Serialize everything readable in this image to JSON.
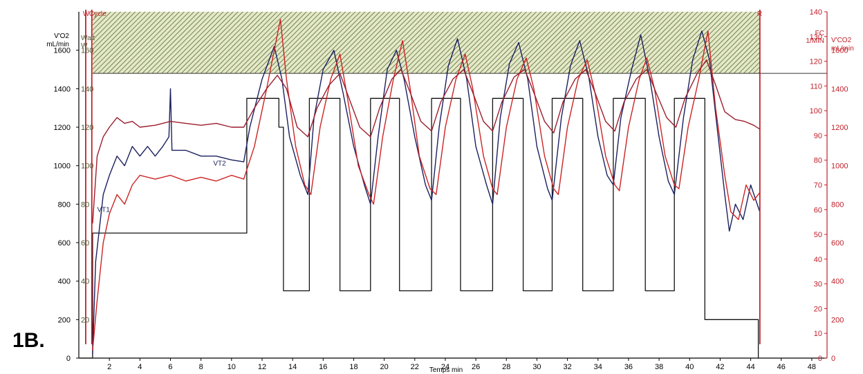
{
  "panel_label": "1B.",
  "chart_data": {
    "type": "line",
    "xlabel": "Temps min",
    "xlim": [
      0,
      49
    ],
    "x_ticks": [
      2,
      4,
      6,
      8,
      10,
      12,
      14,
      16,
      18,
      20,
      22,
      24,
      26,
      28,
      30,
      32,
      34,
      36,
      38,
      40,
      42,
      44,
      46,
      48
    ],
    "axes": {
      "vo2": {
        "label_line1": "V'O2",
        "label_line2": "mL/min",
        "range": [
          0,
          1800
        ],
        "ticks": [
          0,
          200,
          400,
          600,
          800,
          1000,
          1200,
          1400,
          1600
        ],
        "color": "#1a1a4a"
      },
      "watt": {
        "label_line1": "Watt",
        "label_line2": "W",
        "range": [
          0,
          180
        ],
        "ticks": [
          20,
          40,
          60,
          80,
          100,
          120,
          140,
          160
        ],
        "color": "#555533"
      },
      "fc": {
        "label_line1": "FC",
        "label_line2": "1/MIN",
        "range": [
          0,
          140
        ],
        "ticks": [
          0,
          10,
          20,
          30,
          40,
          50,
          60,
          70,
          80,
          90,
          100,
          110,
          120,
          130,
          140
        ],
        "color": "#c0202a"
      },
      "vco2": {
        "label_line1": "V'CO2",
        "label_line2": "mL/min",
        "range": [
          0,
          1800
        ],
        "ticks": [
          0,
          200,
          400,
          600,
          800,
          1000,
          1200,
          1400,
          1600
        ],
        "color": "#c0202a"
      }
    },
    "hatched_zone": {
      "vo2_from": 1480,
      "vo2_to": 1800,
      "x_from": 0.9,
      "x_to": 44.6,
      "color": "#556b2f"
    },
    "markers": [
      {
        "label": "W",
        "x": 0.45,
        "color": "#c0202a"
      },
      {
        "label": "Cycle",
        "x": 0.85,
        "color": "#c0202a"
      },
      {
        "label": "R",
        "x": 44.6,
        "color": "#c0202a"
      }
    ],
    "annotations": [
      {
        "text": "VT1",
        "x": 1.2,
        "y": 760
      },
      {
        "text": "VT2",
        "x": 8.8,
        "y": 1000
      }
    ],
    "series": [
      {
        "name": "Watt",
        "axis": "vo2",
        "color": "#111111",
        "step": true,
        "points": [
          [
            0.1,
            0
          ],
          [
            0.9,
            0
          ],
          [
            0.9,
            650
          ],
          [
            11.0,
            650
          ],
          [
            11.0,
            1350
          ],
          [
            13.1,
            1350
          ],
          [
            13.1,
            1200
          ],
          [
            13.4,
            1200
          ],
          [
            13.4,
            350
          ],
          [
            15.1,
            350
          ],
          [
            15.1,
            1350
          ],
          [
            17.1,
            1350
          ],
          [
            17.1,
            350
          ],
          [
            19.1,
            350
          ],
          [
            19.1,
            1350
          ],
          [
            21.0,
            1350
          ],
          [
            21.0,
            350
          ],
          [
            23.1,
            350
          ],
          [
            23.1,
            1350
          ],
          [
            25.0,
            1350
          ],
          [
            25.0,
            350
          ],
          [
            27.1,
            350
          ],
          [
            27.1,
            1350
          ],
          [
            29.1,
            1350
          ],
          [
            29.1,
            350
          ],
          [
            31.0,
            350
          ],
          [
            31.0,
            1350
          ],
          [
            33.0,
            1350
          ],
          [
            33.0,
            350
          ],
          [
            35.0,
            350
          ],
          [
            35.0,
            1350
          ],
          [
            37.1,
            1350
          ],
          [
            37.1,
            350
          ],
          [
            39.0,
            350
          ],
          [
            39.0,
            1350
          ],
          [
            41.0,
            1350
          ],
          [
            41.0,
            200
          ],
          [
            44.5,
            200
          ],
          [
            44.5,
            0
          ]
        ]
      },
      {
        "name": "V'O2",
        "axis": "vo2",
        "color": "#1a1f5e",
        "step": false,
        "points": [
          [
            0.9,
            20
          ],
          [
            1.1,
            500
          ],
          [
            1.6,
            850
          ],
          [
            2.0,
            950
          ],
          [
            2.5,
            1050
          ],
          [
            3.0,
            1000
          ],
          [
            3.5,
            1100
          ],
          [
            4.0,
            1050
          ],
          [
            4.5,
            1100
          ],
          [
            5.0,
            1050
          ],
          [
            5.5,
            1100
          ],
          [
            5.9,
            1150
          ],
          [
            6.0,
            1400
          ],
          [
            6.1,
            1080
          ],
          [
            7.0,
            1080
          ],
          [
            8.0,
            1050
          ],
          [
            9.0,
            1050
          ],
          [
            10.0,
            1030
          ],
          [
            10.8,
            1020
          ],
          [
            11.2,
            1200
          ],
          [
            12.0,
            1450
          ],
          [
            12.8,
            1620
          ],
          [
            13.3,
            1450
          ],
          [
            13.8,
            1150
          ],
          [
            14.5,
            950
          ],
          [
            15.0,
            850
          ],
          [
            15.4,
            1250
          ],
          [
            16.0,
            1500
          ],
          [
            16.7,
            1600
          ],
          [
            17.3,
            1380
          ],
          [
            18.0,
            1100
          ],
          [
            18.7,
            900
          ],
          [
            19.1,
            800
          ],
          [
            19.6,
            1150
          ],
          [
            20.2,
            1500
          ],
          [
            20.8,
            1600
          ],
          [
            21.3,
            1450
          ],
          [
            22.0,
            1150
          ],
          [
            22.7,
            900
          ],
          [
            23.1,
            820
          ],
          [
            23.6,
            1200
          ],
          [
            24.2,
            1520
          ],
          [
            24.8,
            1660
          ],
          [
            25.4,
            1450
          ],
          [
            26.0,
            1100
          ],
          [
            26.7,
            900
          ],
          [
            27.1,
            800
          ],
          [
            27.6,
            1250
          ],
          [
            28.2,
            1530
          ],
          [
            28.8,
            1640
          ],
          [
            29.4,
            1450
          ],
          [
            30.0,
            1100
          ],
          [
            30.7,
            880
          ],
          [
            31.0,
            820
          ],
          [
            31.6,
            1250
          ],
          [
            32.2,
            1520
          ],
          [
            32.8,
            1650
          ],
          [
            33.4,
            1460
          ],
          [
            34.0,
            1150
          ],
          [
            34.6,
            950
          ],
          [
            35.0,
            900
          ],
          [
            35.5,
            1250
          ],
          [
            36.2,
            1500
          ],
          [
            36.8,
            1680
          ],
          [
            37.4,
            1450
          ],
          [
            38.0,
            1150
          ],
          [
            38.6,
            920
          ],
          [
            39.0,
            850
          ],
          [
            39.6,
            1250
          ],
          [
            40.2,
            1550
          ],
          [
            40.8,
            1700
          ],
          [
            41.3,
            1550
          ],
          [
            41.8,
            1200
          ],
          [
            42.3,
            850
          ],
          [
            42.6,
            660
          ],
          [
            43.0,
            800
          ],
          [
            43.5,
            720
          ],
          [
            44.0,
            900
          ],
          [
            44.6,
            760
          ]
        ]
      },
      {
        "name": "V'CO2",
        "axis": "vo2",
        "color": "#cc2222",
        "step": false,
        "points": [
          [
            0.9,
            40
          ],
          [
            1.2,
            300
          ],
          [
            1.6,
            600
          ],
          [
            2.0,
            750
          ],
          [
            2.5,
            850
          ],
          [
            3.0,
            800
          ],
          [
            3.5,
            900
          ],
          [
            4.0,
            950
          ],
          [
            5.0,
            930
          ],
          [
            6.0,
            950
          ],
          [
            7.0,
            920
          ],
          [
            8.0,
            940
          ],
          [
            9.0,
            920
          ],
          [
            10.0,
            950
          ],
          [
            10.8,
            930
          ],
          [
            11.5,
            1100
          ],
          [
            12.3,
            1400
          ],
          [
            12.8,
            1600
          ],
          [
            13.2,
            1760
          ],
          [
            13.6,
            1450
          ],
          [
            14.2,
            1100
          ],
          [
            14.8,
            900
          ],
          [
            15.2,
            850
          ],
          [
            15.8,
            1200
          ],
          [
            16.5,
            1450
          ],
          [
            17.1,
            1580
          ],
          [
            17.6,
            1350
          ],
          [
            18.3,
            1000
          ],
          [
            19.0,
            850
          ],
          [
            19.3,
            800
          ],
          [
            19.9,
            1150
          ],
          [
            20.6,
            1450
          ],
          [
            21.2,
            1650
          ],
          [
            21.7,
            1400
          ],
          [
            22.3,
            1050
          ],
          [
            23.0,
            880
          ],
          [
            23.4,
            850
          ],
          [
            24.0,
            1200
          ],
          [
            24.7,
            1450
          ],
          [
            25.3,
            1580
          ],
          [
            25.8,
            1400
          ],
          [
            26.5,
            1050
          ],
          [
            27.1,
            880
          ],
          [
            27.4,
            850
          ],
          [
            28.0,
            1200
          ],
          [
            28.7,
            1450
          ],
          [
            29.3,
            1560
          ],
          [
            29.8,
            1400
          ],
          [
            30.5,
            1050
          ],
          [
            31.1,
            880
          ],
          [
            31.4,
            850
          ],
          [
            32.0,
            1200
          ],
          [
            32.7,
            1450
          ],
          [
            33.3,
            1550
          ],
          [
            33.8,
            1380
          ],
          [
            34.5,
            1050
          ],
          [
            35.1,
            900
          ],
          [
            35.4,
            870
          ],
          [
            36.0,
            1200
          ],
          [
            36.7,
            1450
          ],
          [
            37.2,
            1560
          ],
          [
            37.7,
            1400
          ],
          [
            38.4,
            1050
          ],
          [
            39.0,
            900
          ],
          [
            39.3,
            880
          ],
          [
            39.9,
            1200
          ],
          [
            40.6,
            1450
          ],
          [
            41.2,
            1700
          ],
          [
            41.7,
            1300
          ],
          [
            42.3,
            950
          ],
          [
            42.7,
            760
          ],
          [
            43.2,
            720
          ],
          [
            43.7,
            900
          ],
          [
            44.2,
            820
          ],
          [
            44.6,
            860
          ]
        ]
      },
      {
        "name": "FC",
        "axis": "vo2",
        "color": "#9b1c2c",
        "step": false,
        "points": [
          [
            0.9,
            700
          ],
          [
            1.2,
            1050
          ],
          [
            1.6,
            1150
          ],
          [
            2.0,
            1200
          ],
          [
            2.5,
            1250
          ],
          [
            3.0,
            1220
          ],
          [
            3.5,
            1230
          ],
          [
            4.0,
            1200
          ],
          [
            5.0,
            1210
          ],
          [
            6.0,
            1230
          ],
          [
            7.0,
            1220
          ],
          [
            8.0,
            1210
          ],
          [
            9.0,
            1220
          ],
          [
            10.0,
            1200
          ],
          [
            10.8,
            1200
          ],
          [
            11.5,
            1300
          ],
          [
            12.3,
            1400
          ],
          [
            13.0,
            1470
          ],
          [
            13.6,
            1400
          ],
          [
            14.3,
            1200
          ],
          [
            15.0,
            1150
          ],
          [
            15.6,
            1300
          ],
          [
            16.4,
            1420
          ],
          [
            17.1,
            1480
          ],
          [
            17.7,
            1350
          ],
          [
            18.4,
            1200
          ],
          [
            19.1,
            1150
          ],
          [
            19.7,
            1300
          ],
          [
            20.5,
            1450
          ],
          [
            21.1,
            1500
          ],
          [
            21.7,
            1380
          ],
          [
            22.4,
            1230
          ],
          [
            23.1,
            1180
          ],
          [
            23.7,
            1330
          ],
          [
            24.5,
            1450
          ],
          [
            25.2,
            1500
          ],
          [
            25.8,
            1380
          ],
          [
            26.5,
            1230
          ],
          [
            27.1,
            1180
          ],
          [
            27.7,
            1330
          ],
          [
            28.5,
            1460
          ],
          [
            29.2,
            1500
          ],
          [
            29.8,
            1380
          ],
          [
            30.5,
            1230
          ],
          [
            31.1,
            1170
          ],
          [
            31.7,
            1330
          ],
          [
            32.5,
            1450
          ],
          [
            33.2,
            1500
          ],
          [
            33.8,
            1380
          ],
          [
            34.5,
            1230
          ],
          [
            35.1,
            1180
          ],
          [
            35.7,
            1330
          ],
          [
            36.5,
            1450
          ],
          [
            37.2,
            1500
          ],
          [
            37.8,
            1380
          ],
          [
            38.5,
            1250
          ],
          [
            39.1,
            1200
          ],
          [
            39.7,
            1350
          ],
          [
            40.5,
            1480
          ],
          [
            41.1,
            1550
          ],
          [
            41.7,
            1420
          ],
          [
            42.3,
            1280
          ],
          [
            43.0,
            1240
          ],
          [
            43.6,
            1230
          ],
          [
            44.2,
            1210
          ],
          [
            44.6,
            1190
          ]
        ]
      }
    ]
  }
}
